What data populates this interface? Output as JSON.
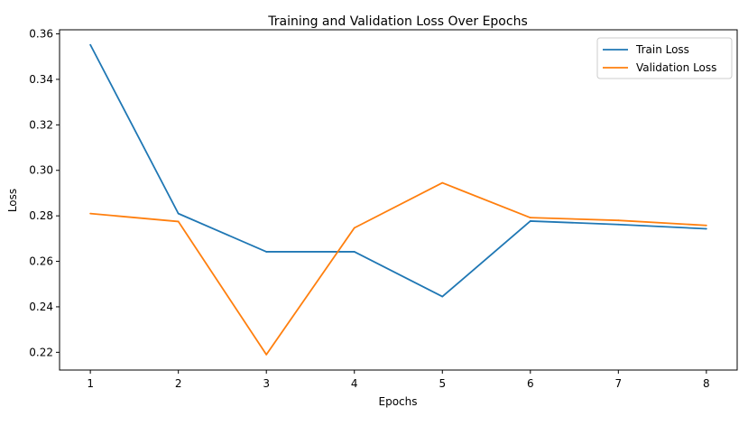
{
  "chart_data": {
    "type": "line",
    "title": "Training and Validation Loss Over Epochs",
    "xlabel": "Epochs",
    "ylabel": "Loss",
    "x": [
      1,
      2,
      3,
      4,
      5,
      6,
      7,
      8
    ],
    "xlim": [
      0.65,
      8.35
    ],
    "ylim": [
      0.2122,
      0.3618
    ],
    "xticks": [
      "1",
      "2",
      "3",
      "4",
      "5",
      "6",
      "7",
      "8"
    ],
    "yticks": [
      "0.22",
      "0.24",
      "0.26",
      "0.28",
      "0.30",
      "0.32",
      "0.34",
      "0.36"
    ],
    "grid": false,
    "legend_position": "top-right",
    "series": [
      {
        "name": "Train Loss",
        "color": "#1f77b4",
        "values": [
          0.3552,
          0.281,
          0.2642,
          0.2642,
          0.2445,
          0.2777,
          0.2762,
          0.2743
        ]
      },
      {
        "name": "Validation Loss",
        "color": "#ff7f0e",
        "values": [
          0.281,
          0.2775,
          0.219,
          0.2747,
          0.2945,
          0.2792,
          0.278,
          0.2758
        ]
      }
    ]
  }
}
